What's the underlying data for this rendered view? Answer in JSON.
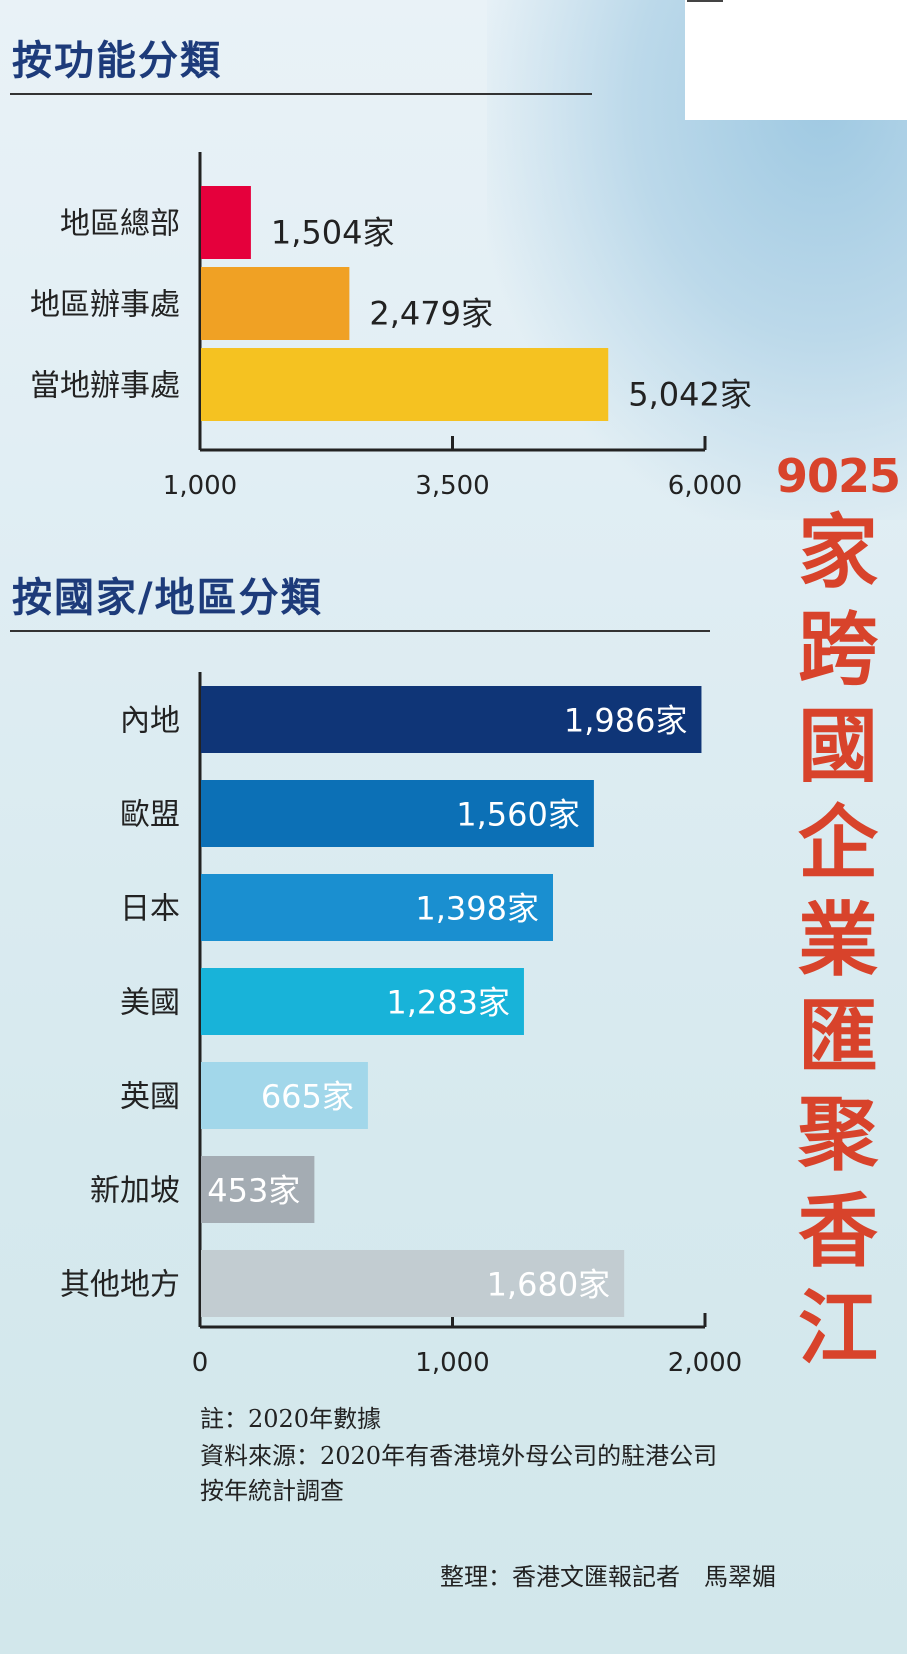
{
  "section1": {
    "title": "按功能分類"
  },
  "section2": {
    "title": "按國家/地區分類"
  },
  "headline": {
    "number": "9025",
    "text": "家跨國企業匯聚香江"
  },
  "notes": {
    "note": "註：2020年數據",
    "source_line1": "資料來源：2020年有香港境外母公司的駐港公司",
    "source_line2": "按年統計調查",
    "credit": "整理：香港文匯報記者　馬翠媚"
  },
  "chart_data": [
    {
      "type": "bar",
      "orientation": "horizontal",
      "title": "按功能分類",
      "categories": [
        "地區總部",
        "地區辦事處",
        "當地辦事處"
      ],
      "values": [
        1504,
        2479,
        5042
      ],
      "value_labels": [
        "1,504家",
        "2,479家",
        "5,042家"
      ],
      "colors": [
        "#e5003c",
        "#f0a124",
        "#f5c221"
      ],
      "xlim": [
        1000,
        6000
      ],
      "xticks": [
        1000,
        3500,
        6000
      ],
      "xtick_labels": [
        "1,000",
        "3,500",
        "6,000"
      ],
      "value_label_position": "outside",
      "grid": false
    },
    {
      "type": "bar",
      "orientation": "horizontal",
      "title": "按國家/地區分類",
      "categories": [
        "內地",
        "歐盟",
        "日本",
        "美國",
        "英國",
        "新加坡",
        "其他地方"
      ],
      "values": [
        1986,
        1560,
        1398,
        1283,
        665,
        453,
        1680
      ],
      "value_labels": [
        "1,986家",
        "1,560家",
        "1,398家",
        "1,283家",
        "665家",
        "453家",
        "1,680家"
      ],
      "colors": [
        "#0f3577",
        "#0c70b6",
        "#1a8fd0",
        "#18b3d9",
        "#a2d7ea",
        "#a4acb3",
        "#c2ccd1"
      ],
      "xlim": [
        0,
        2000
      ],
      "xticks": [
        0,
        1000,
        2000
      ],
      "xtick_labels": [
        "0",
        "1,000",
        "2,000"
      ],
      "value_label_position": "inside-end",
      "grid": false
    }
  ]
}
